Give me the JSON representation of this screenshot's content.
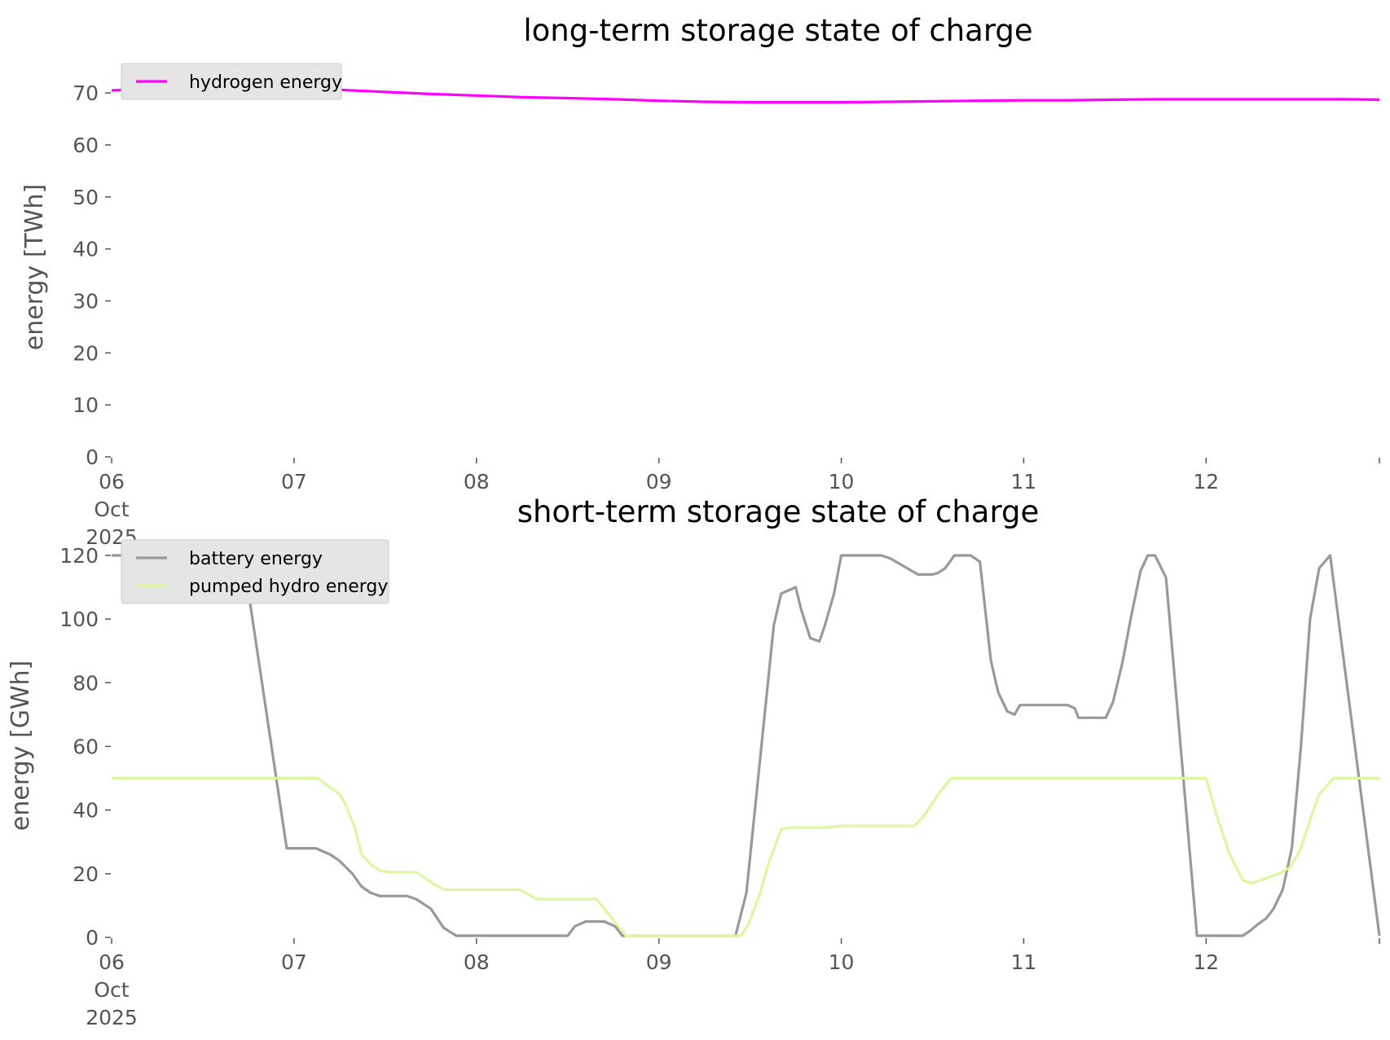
{
  "chart_data": [
    {
      "type": "line",
      "title": "long-term storage state of charge",
      "ylabel": "energy [TWh]",
      "xlabel": "",
      "x_ticks": [
        {
          "day": 0,
          "label": [
            "06",
            "Oct",
            "2025"
          ]
        },
        {
          "day": 1,
          "label": [
            "07"
          ]
        },
        {
          "day": 2,
          "label": [
            "08"
          ]
        },
        {
          "day": 3,
          "label": [
            "09"
          ]
        },
        {
          "day": 4,
          "label": [
            "10"
          ]
        },
        {
          "day": 5,
          "label": [
            "11"
          ]
        },
        {
          "day": 6,
          "label": [
            "12"
          ]
        }
      ],
      "xlim_days": [
        0,
        6.95
      ],
      "ylim": [
        0,
        73
      ],
      "y_ticks": [
        0,
        10,
        20,
        30,
        40,
        50,
        60,
        70
      ],
      "grid": false,
      "legend": "top-left",
      "series": [
        {
          "name": "hydrogen energy",
          "color": "#ff00ff",
          "x_days": [
            0,
            0.25,
            0.5,
            0.75,
            1.0,
            1.25,
            1.5,
            1.75,
            2.0,
            2.25,
            2.5,
            2.75,
            3.0,
            3.25,
            3.5,
            3.75,
            4.0,
            4.25,
            4.5,
            4.75,
            5.0,
            5.25,
            5.5,
            5.75,
            6.0,
            6.25,
            6.5,
            6.75,
            6.95
          ],
          "values": [
            70.5,
            70.8,
            70.9,
            71.0,
            70.9,
            70.6,
            70.2,
            69.8,
            69.5,
            69.2,
            69.0,
            68.8,
            68.5,
            68.3,
            68.2,
            68.2,
            68.2,
            68.3,
            68.4,
            68.5,
            68.6,
            68.6,
            68.7,
            68.8,
            68.8,
            68.8,
            68.8,
            68.8,
            68.7
          ]
        }
      ]
    },
    {
      "type": "line",
      "title": "short-term storage state of charge",
      "ylabel": "energy [GWh]",
      "xlabel": "",
      "x_ticks": [
        {
          "day": 0,
          "label": [
            "06",
            "Oct",
            "2025"
          ]
        },
        {
          "day": 1,
          "label": [
            "07"
          ]
        },
        {
          "day": 2,
          "label": [
            "08"
          ]
        },
        {
          "day": 3,
          "label": [
            "09"
          ]
        },
        {
          "day": 4,
          "label": [
            "10"
          ]
        },
        {
          "day": 5,
          "label": [
            "11"
          ]
        },
        {
          "day": 6,
          "label": [
            "12"
          ]
        }
      ],
      "xlim_days": [
        0,
        6.95
      ],
      "ylim": [
        0,
        120.5
      ],
      "y_ticks": [
        0,
        20,
        40,
        60,
        80,
        100,
        120
      ],
      "grid": false,
      "legend": "top-left",
      "series": [
        {
          "name": "battery energy",
          "color": "#999999",
          "x_days": [
            0,
            0.72,
            0.96,
            1.12,
            1.2,
            1.25,
            1.32,
            1.37,
            1.42,
            1.47,
            1.62,
            1.67,
            1.75,
            1.82,
            1.89,
            2.5,
            2.54,
            2.6,
            2.7,
            2.76,
            2.8,
            3.42,
            3.48,
            3.63,
            3.67,
            3.75,
            3.78,
            3.83,
            3.88,
            3.91,
            3.96,
            4.0,
            4.22,
            4.27,
            4.42,
            4.47,
            4.5,
            4.53,
            4.57,
            4.62,
            4.67,
            4.71,
            4.76,
            4.82,
            4.86,
            4.91,
            4.95,
            4.98,
            5.1,
            5.24,
            5.28,
            5.3,
            5.45,
            5.49,
            5.54,
            5.59,
            5.64,
            5.68,
            5.72,
            5.78,
            5.95,
            6.2,
            6.24,
            6.28,
            6.33,
            6.37,
            6.42,
            6.47,
            6.52,
            6.57,
            6.62,
            6.68,
            6.95
          ],
          "values": [
            120,
            120,
            28,
            28,
            26,
            24,
            20,
            16,
            14,
            13,
            13,
            12,
            9,
            3,
            0.5,
            0.5,
            3.5,
            5,
            5,
            3.5,
            0.5,
            0.5,
            14,
            98,
            108,
            110,
            103,
            94,
            93,
            98,
            108,
            120,
            120,
            119,
            114,
            114,
            114,
            114.5,
            116,
            120,
            120,
            120,
            118,
            87,
            77,
            71,
            70,
            73,
            73,
            73,
            72,
            69,
            69,
            74,
            86,
            101,
            115,
            120,
            120,
            113,
            0.5,
            0.5,
            2,
            4,
            6,
            9,
            15,
            28,
            60,
            100,
            116,
            120,
            0.5
          ]
        },
        {
          "name": "pumped hydro energy",
          "color": "#dcf7a0",
          "x_days": [
            0,
            1.13,
            1.2,
            1.25,
            1.28,
            1.33,
            1.37,
            1.42,
            1.47,
            1.52,
            1.67,
            1.76,
            1.82,
            1.86,
            2.24,
            2.33,
            2.66,
            2.77,
            2.82,
            3.45,
            3.49,
            3.55,
            3.6,
            3.67,
            3.73,
            3.92,
            4.0,
            4.4,
            4.45,
            4.52,
            4.6,
            6.0,
            6.06,
            6.13,
            6.2,
            6.25,
            6.4,
            6.46,
            6.52,
            6.57,
            6.62,
            6.7,
            6.95
          ],
          "values": [
            50,
            50,
            47,
            45,
            42,
            35,
            26,
            23,
            21,
            20.5,
            20.5,
            17,
            15,
            15,
            15,
            12,
            12,
            4,
            0.5,
            0.5,
            4,
            13,
            23,
            34,
            34.5,
            34.5,
            35,
            35,
            38,
            44,
            50,
            50,
            38,
            26,
            18,
            17,
            20,
            22,
            28,
            37,
            45,
            50,
            50
          ]
        }
      ]
    }
  ]
}
